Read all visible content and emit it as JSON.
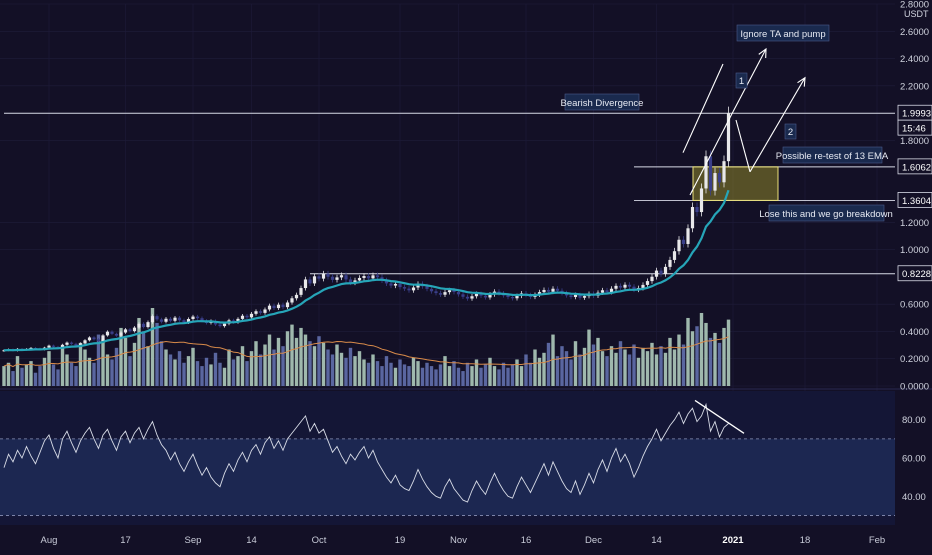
{
  "colors": {
    "background": "#131026",
    "grid": "#1f1c3a",
    "bull_candle": "#e8e8ea",
    "bear_candle": "#3a3f8a",
    "ema13": "#26a5b8",
    "ma_orange": "#d98b4a",
    "volume_bull": "#9fb8ad",
    "volume_bear": "#5a66a0",
    "rsi_line": "#d7dbe6",
    "rsi_band": "#1d2a56",
    "price_label_bg": "#131026",
    "annotation_bg": "#1a2a4e",
    "zone_fill": "#a89f2a",
    "zone_stroke": "#ece27a",
    "drawing": "#ffffff"
  },
  "price_axis": {
    "currency": "USDT",
    "tick_labels": [
      "2.8000",
      "2.6000",
      "2.4000",
      "2.2000",
      "1.8000",
      "1.2000",
      "1.0000",
      "0.6000",
      "0.4000",
      "0.2000",
      "0.0000"
    ],
    "ticks": [
      2.8,
      2.6,
      2.4,
      2.2,
      1.8,
      1.2,
      1.0,
      0.6,
      0.4,
      0.2,
      0.0
    ],
    "price_labels": [
      {
        "id": "level-19993",
        "text": "1.9993",
        "value": 1.9993
      },
      {
        "id": "countdown",
        "text": "15:46",
        "value": 1.89
      },
      {
        "id": "level-16062",
        "text": "1.6062",
        "value": 1.6062
      },
      {
        "id": "level-13604",
        "text": "1.3604",
        "value": 1.3604
      },
      {
        "id": "level-08228",
        "text": "0.8228",
        "value": 0.8228
      }
    ]
  },
  "rsi_axis": {
    "tick_labels": [
      "80.00",
      "60.00",
      "40.00"
    ],
    "ticks": [
      80,
      60,
      40
    ],
    "upper_band": 70,
    "lower_band": 30
  },
  "time_axis": {
    "labels": [
      {
        "text": "Aug",
        "index": 10
      },
      {
        "text": "17",
        "index": 27
      },
      {
        "text": "Sep",
        "index": 42
      },
      {
        "text": "14",
        "index": 55
      },
      {
        "text": "Oct",
        "index": 70
      },
      {
        "text": "19",
        "index": 88
      },
      {
        "text": "Nov",
        "index": 101
      },
      {
        "text": "16",
        "index": 116
      },
      {
        "text": "Dec",
        "index": 131
      },
      {
        "text": "14",
        "index": 145
      },
      {
        "text": "2021",
        "index": 162
      },
      {
        "text": "18",
        "index": 178
      },
      {
        "text": "Feb",
        "index": 194
      }
    ]
  },
  "annotations": {
    "ignore_ta": "Ignore TA and pump",
    "bearish_div": "Bearish Divergence",
    "retest": "Possible re-test of 13 EMA",
    "breakdown": "Lose this and we go breakdown",
    "label_1": "1",
    "label_2": "2"
  },
  "chart_data": {
    "type": "line",
    "x_unit": "daily candles, late July 2020 to early January 2021",
    "series": [
      {
        "kind": "candlestick",
        "close": [
          0.262,
          0.268,
          0.259,
          0.272,
          0.266,
          0.271,
          0.279,
          0.274,
          0.268,
          0.281,
          0.296,
          0.287,
          0.279,
          0.302,
          0.318,
          0.309,
          0.296,
          0.312,
          0.335,
          0.356,
          0.342,
          0.329,
          0.371,
          0.398,
          0.382,
          0.369,
          0.392,
          0.415,
          0.402,
          0.428,
          0.456,
          0.432,
          0.468,
          0.512,
          0.488,
          0.471,
          0.493,
          0.478,
          0.501,
          0.482,
          0.466,
          0.491,
          0.509,
          0.497,
          0.478,
          0.462,
          0.476,
          0.451,
          0.439,
          0.457,
          0.481,
          0.468,
          0.492,
          0.515,
          0.503,
          0.529,
          0.548,
          0.536,
          0.561,
          0.589,
          0.571,
          0.596,
          0.578,
          0.612,
          0.643,
          0.668,
          0.718,
          0.781,
          0.752,
          0.804,
          0.787,
          0.823,
          0.801,
          0.778,
          0.796,
          0.812,
          0.781,
          0.758,
          0.774,
          0.792,
          0.806,
          0.789,
          0.811,
          0.797,
          0.774,
          0.752,
          0.736,
          0.748,
          0.725,
          0.714,
          0.701,
          0.722,
          0.748,
          0.731,
          0.712,
          0.694,
          0.681,
          0.669,
          0.688,
          0.702,
          0.689,
          0.672,
          0.654,
          0.641,
          0.658,
          0.676,
          0.662,
          0.649,
          0.671,
          0.692,
          0.679,
          0.664,
          0.652,
          0.643,
          0.661,
          0.679,
          0.667,
          0.653,
          0.669,
          0.688,
          0.704,
          0.691,
          0.713,
          0.698,
          0.681,
          0.664,
          0.652,
          0.668,
          0.647,
          0.659,
          0.676,
          0.662,
          0.684,
          0.702,
          0.689,
          0.713,
          0.734,
          0.721,
          0.742,
          0.728,
          0.706,
          0.718,
          0.741,
          0.769,
          0.801,
          0.846,
          0.821,
          0.873,
          0.924,
          0.988,
          1.072,
          1.041,
          1.156,
          1.312,
          1.275,
          1.448,
          1.684,
          1.432,
          1.561,
          1.493,
          1.648,
          1.998
        ],
        "ema_period": 13
      },
      {
        "kind": "volume_histogram",
        "values": [
          0.12,
          0.14,
          0.09,
          0.18,
          0.11,
          0.13,
          0.15,
          0.08,
          0.12,
          0.17,
          0.21,
          0.13,
          0.1,
          0.24,
          0.19,
          0.14,
          0.12,
          0.26,
          0.22,
          0.17,
          0.14,
          0.31,
          0.28,
          0.19,
          0.16,
          0.23,
          0.35,
          0.29,
          0.18,
          0.26,
          0.41,
          0.33,
          0.24,
          0.47,
          0.38,
          0.27,
          0.22,
          0.19,
          0.16,
          0.21,
          0.14,
          0.18,
          0.23,
          0.15,
          0.12,
          0.17,
          0.13,
          0.2,
          0.14,
          0.11,
          0.22,
          0.16,
          0.18,
          0.24,
          0.15,
          0.21,
          0.27,
          0.19,
          0.25,
          0.31,
          0.22,
          0.29,
          0.24,
          0.33,
          0.37,
          0.29,
          0.35,
          0.31,
          0.27,
          0.24,
          0.3,
          0.26,
          0.22,
          0.19,
          0.25,
          0.2,
          0.17,
          0.23,
          0.18,
          0.21,
          0.16,
          0.14,
          0.19,
          0.15,
          0.12,
          0.18,
          0.14,
          0.11,
          0.16,
          0.13,
          0.12,
          0.17,
          0.15,
          0.11,
          0.14,
          0.12,
          0.1,
          0.13,
          0.18,
          0.12,
          0.15,
          0.11,
          0.09,
          0.14,
          0.12,
          0.16,
          0.11,
          0.13,
          0.17,
          0.12,
          0.1,
          0.14,
          0.11,
          0.13,
          0.16,
          0.12,
          0.19,
          0.14,
          0.22,
          0.17,
          0.2,
          0.26,
          0.31,
          0.18,
          0.24,
          0.21,
          0.16,
          0.27,
          0.19,
          0.23,
          0.34,
          0.25,
          0.29,
          0.21,
          0.18,
          0.24,
          0.2,
          0.27,
          0.22,
          0.19,
          0.25,
          0.17,
          0.23,
          0.21,
          0.26,
          0.19,
          0.24,
          0.2,
          0.29,
          0.22,
          0.31,
          0.25,
          0.41,
          0.33,
          0.36,
          0.44,
          0.38,
          0.29,
          0.32,
          0.26,
          0.35,
          0.4
        ],
        "ma_period": 20
      },
      {
        "kind": "rsi",
        "values": [
          55,
          62,
          58,
          64,
          60,
          66,
          61,
          57,
          63,
          69,
          72,
          65,
          60,
          70,
          74,
          68,
          63,
          69,
          73,
          76,
          70,
          65,
          72,
          75,
          69,
          64,
          71,
          74,
          68,
          73,
          76,
          70,
          75,
          79,
          72,
          67,
          64,
          59,
          63,
          57,
          53,
          58,
          62,
          56,
          51,
          55,
          50,
          47,
          45,
          52,
          57,
          53,
          59,
          63,
          58,
          64,
          67,
          62,
          68,
          71,
          65,
          69,
          64,
          70,
          73,
          76,
          79,
          82,
          74,
          78,
          73,
          75,
          69,
          63,
          66,
          61,
          57,
          62,
          59,
          63,
          66,
          60,
          64,
          58,
          54,
          50,
          47,
          51,
          46,
          44,
          43,
          48,
          54,
          49,
          45,
          42,
          40,
          39,
          45,
          49,
          44,
          41,
          38,
          37,
          43,
          48,
          44,
          41,
          47,
          52,
          47,
          43,
          40,
          39,
          45,
          50,
          46,
          42,
          47,
          52,
          57,
          51,
          58,
          53,
          48,
          44,
          42,
          48,
          41,
          46,
          52,
          47,
          54,
          59,
          53,
          60,
          65,
          58,
          62,
          57,
          50,
          55,
          61,
          66,
          70,
          75,
          69,
          73,
          77,
          80,
          84,
          78,
          83,
          86,
          79,
          82,
          88,
          74,
          79,
          71,
          76,
          78
        ]
      }
    ],
    "xlabel": "",
    "ylabel": "",
    "ylim": [
      0,
      2.8
    ],
    "rsi_ylim": [
      25,
      95
    ],
    "horizontal_levels": [
      1.9993,
      1.6062,
      1.3604,
      0.8228
    ],
    "grid": true,
    "legend": "none"
  }
}
